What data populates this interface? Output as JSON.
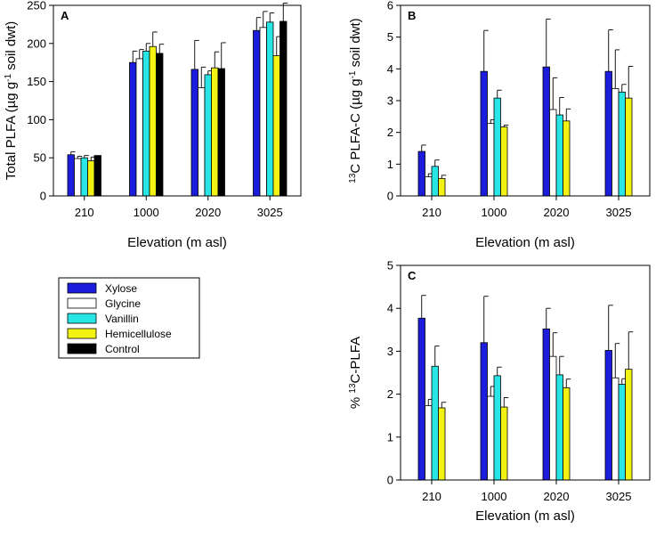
{
  "figure_title": "",
  "legend": {
    "entries": [
      "Xylose",
      "Glycine",
      "Vanillin",
      "Hemicellulose",
      "Control"
    ]
  },
  "colors": {
    "Xylose": "#1c1cdc",
    "Glycine": "#ffffff",
    "Vanillin": "#29e6e6",
    "Hemicellulose": "#f2f213",
    "Control": "#000000"
  },
  "chart_data": [
    {
      "panel": "A",
      "type": "bar",
      "title": "",
      "xlabel": "Elevation (m asl)",
      "ylabel": {
        "prefix": "Total PLFA (µg g",
        "sup": "-1",
        "suffix": " soil dwt)"
      },
      "categories": [
        "210",
        "1000",
        "2020",
        "3025"
      ],
      "ylim": [
        0,
        250
      ],
      "yticks": [
        "0",
        "50",
        "100",
        "150",
        "200",
        "250"
      ],
      "series": [
        {
          "name": "Xylose",
          "values": [
            54,
            175,
            166,
            217
          ],
          "errors": [
            4,
            15,
            38,
            17
          ]
        },
        {
          "name": "Glycine",
          "values": [
            49,
            180,
            142,
            221
          ],
          "errors": [
            3,
            12,
            27,
            21
          ]
        },
        {
          "name": "Vanillin",
          "values": [
            50,
            190,
            159,
            228
          ],
          "errors": [
            3,
            10,
            5,
            12
          ]
        },
        {
          "name": "Hemicellulose",
          "values": [
            46,
            196,
            168,
            184
          ],
          "errors": [
            5,
            19,
            21,
            25
          ]
        },
        {
          "name": "Control",
          "values": [
            53,
            187,
            167,
            229
          ],
          "errors": [
            0,
            12,
            34,
            24
          ]
        }
      ]
    },
    {
      "panel": "B",
      "type": "bar",
      "title": "",
      "xlabel": "Elevation (m asl)",
      "ylabel": {
        "presup": "13",
        "prefix": "C PLFA-C (µg g",
        "sup": "-1",
        "suffix": " soil dwt)"
      },
      "categories": [
        "210",
        "1000",
        "2020",
        "3025"
      ],
      "ylim": [
        0,
        6
      ],
      "yticks": [
        "0",
        "1",
        "2",
        "3",
        "4",
        "5",
        "6"
      ],
      "series": [
        {
          "name": "Xylose",
          "values": [
            1.4,
            3.92,
            4.06,
            3.92
          ],
          "errors": [
            0.2,
            1.29,
            1.51,
            1.31
          ]
        },
        {
          "name": "Glycine",
          "values": [
            0.6,
            2.28,
            2.72,
            3.38
          ],
          "errors": [
            0.1,
            0.12,
            1.0,
            1.22
          ]
        },
        {
          "name": "Vanillin",
          "values": [
            0.93,
            3.08,
            2.55,
            3.27
          ],
          "errors": [
            0.2,
            0.25,
            0.55,
            0.24
          ]
        },
        {
          "name": "Hemicellulose",
          "values": [
            0.55,
            2.17,
            2.36,
            3.08
          ],
          "errors": [
            0.1,
            0.06,
            0.38,
            1.0
          ]
        }
      ]
    },
    {
      "panel": "C",
      "type": "bar",
      "title": "",
      "xlabel": "Elevation (m asl)",
      "ylabel": {
        "prefix": "% ",
        "sup": "13",
        "suffix": "C-PLFA"
      },
      "categories": [
        "210",
        "1000",
        "2020",
        "3025"
      ],
      "ylim": [
        0,
        5
      ],
      "yticks": [
        "0",
        "1",
        "2",
        "3",
        "4",
        "5"
      ],
      "series": [
        {
          "name": "Xylose",
          "values": [
            3.77,
            3.2,
            3.52,
            3.02
          ],
          "errors": [
            0.53,
            1.08,
            0.48,
            1.05
          ]
        },
        {
          "name": "Glycine",
          "values": [
            1.73,
            1.95,
            2.88,
            2.38
          ],
          "errors": [
            0.15,
            0.23,
            0.55,
            0.8
          ]
        },
        {
          "name": "Vanillin",
          "values": [
            2.65,
            2.43,
            2.45,
            2.23
          ],
          "errors": [
            0.47,
            0.2,
            0.43,
            0.13
          ]
        },
        {
          "name": "Hemicellulose",
          "values": [
            1.68,
            1.7,
            2.15,
            2.58
          ],
          "errors": [
            0.13,
            0.22,
            0.2,
            0.87
          ]
        }
      ]
    }
  ]
}
